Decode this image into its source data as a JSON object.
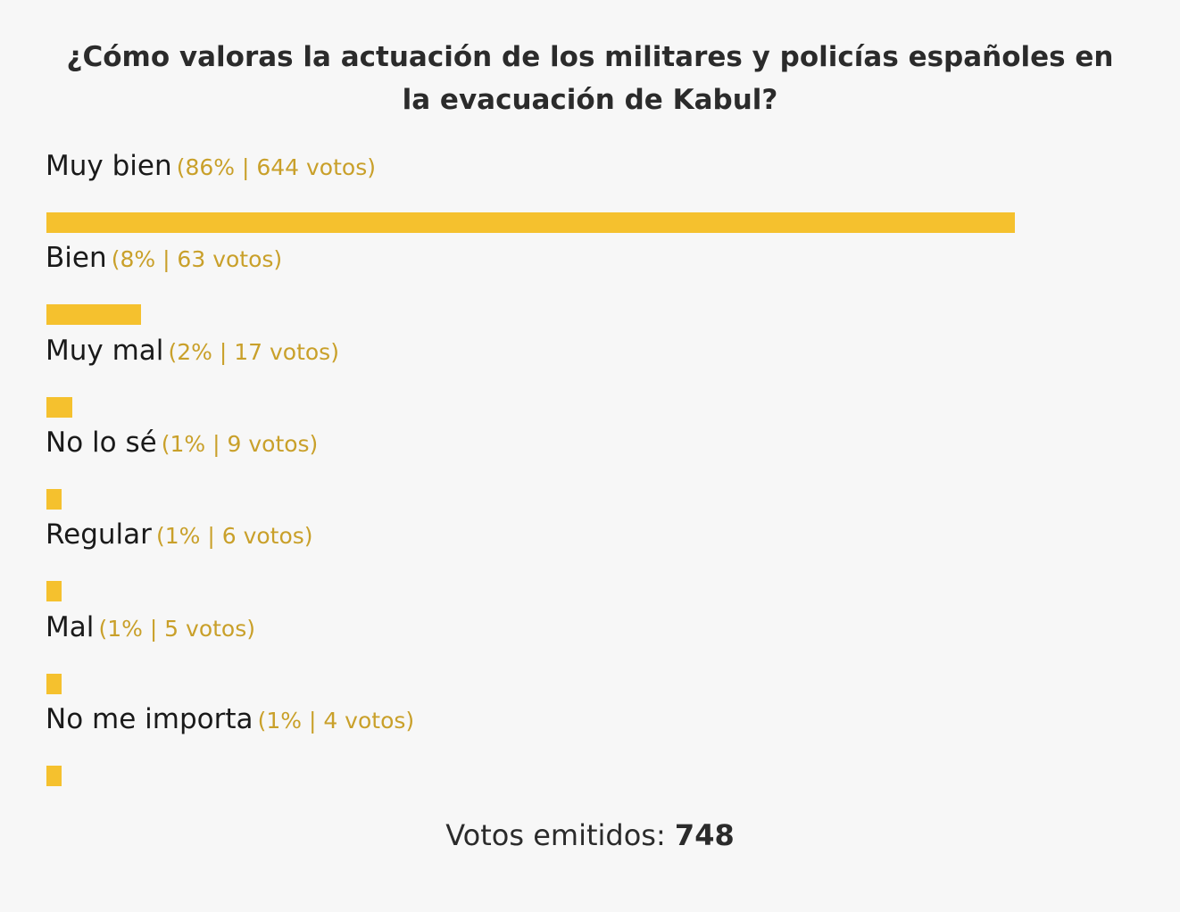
{
  "chart_data": {
    "type": "bar",
    "title": "¿Cómo valoras la actuación de los militares y policías españoles en la evacuación de Kabul?",
    "categories": [
      "Muy bien",
      "Bien",
      "Muy mal",
      "No lo sé",
      "Regular",
      "Mal",
      "No me importa"
    ],
    "values": [
      644,
      63,
      17,
      9,
      6,
      5,
      4
    ],
    "percents": [
      86,
      8,
      2,
      1,
      1,
      1,
      1
    ],
    "stats_labels": [
      "(86% | 644 votos)",
      "(8% | 63 votos)",
      "(2% | 17 votos)",
      "(1% | 9 votos)",
      "(1% | 6 votos)",
      "(1% | 5 votos)",
      "(1% | 4 votos)"
    ],
    "total_label": "Votos emitidos:",
    "total_value": "748",
    "colors": {
      "bar": "#f5c12e",
      "stats_text": "#c9a02a",
      "background": "#f7f7f7"
    }
  }
}
